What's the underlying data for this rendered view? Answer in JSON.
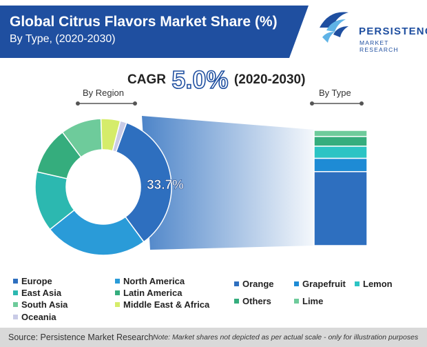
{
  "header": {
    "title": "Global Citrus Flavors Market Share (%)",
    "subtitle": "By Type, (2020-2030)",
    "header_color": "#1f4fa0"
  },
  "logo": {
    "name": "PERSISTENCE",
    "tagline": "MARKET RESEARCH"
  },
  "cagr": {
    "label": "CAGR",
    "value": "5.0%",
    "range": "(2020-2030)"
  },
  "chart_data": [
    {
      "type": "pie",
      "label": "By Region",
      "slice_label": "33.7%",
      "slices": [
        {
          "name": "Europe",
          "value": 33.7,
          "color": "#2e6fbf"
        },
        {
          "name": "North America",
          "value": 24.0,
          "color": "#2a9bd8"
        },
        {
          "name": "East Asia",
          "value": 14.0,
          "color": "#2cb8b0"
        },
        {
          "name": "Latin America",
          "value": 11.0,
          "color": "#35ad7d"
        },
        {
          "name": "South Asia",
          "value": 9.5,
          "color": "#6ecb9b"
        },
        {
          "name": "Middle East & Africa",
          "value": 4.5,
          "color": "#d5ec6a"
        },
        {
          "name": "Oceania",
          "value": 1.5,
          "color": "#c9cbe6"
        }
      ]
    },
    {
      "type": "bar",
      "label": "By Type",
      "stacked": true,
      "segments": [
        {
          "name": "Orange",
          "value": 61,
          "color": "#2e6fbf"
        },
        {
          "name": "Grapefruit",
          "value": 11,
          "color": "#1e8bd5"
        },
        {
          "name": "Lemon",
          "value": 10,
          "color": "#2cc4c4"
        },
        {
          "name": "Others",
          "value": 8,
          "color": "#35ad7d"
        },
        {
          "name": "Lime",
          "value": 5,
          "color": "#6ecb9b"
        }
      ]
    }
  ],
  "footer": {
    "source": "Source: Persistence Market Research",
    "note": "Note: Market shares not depicted as per actual scale - only for illustration purposes"
  }
}
